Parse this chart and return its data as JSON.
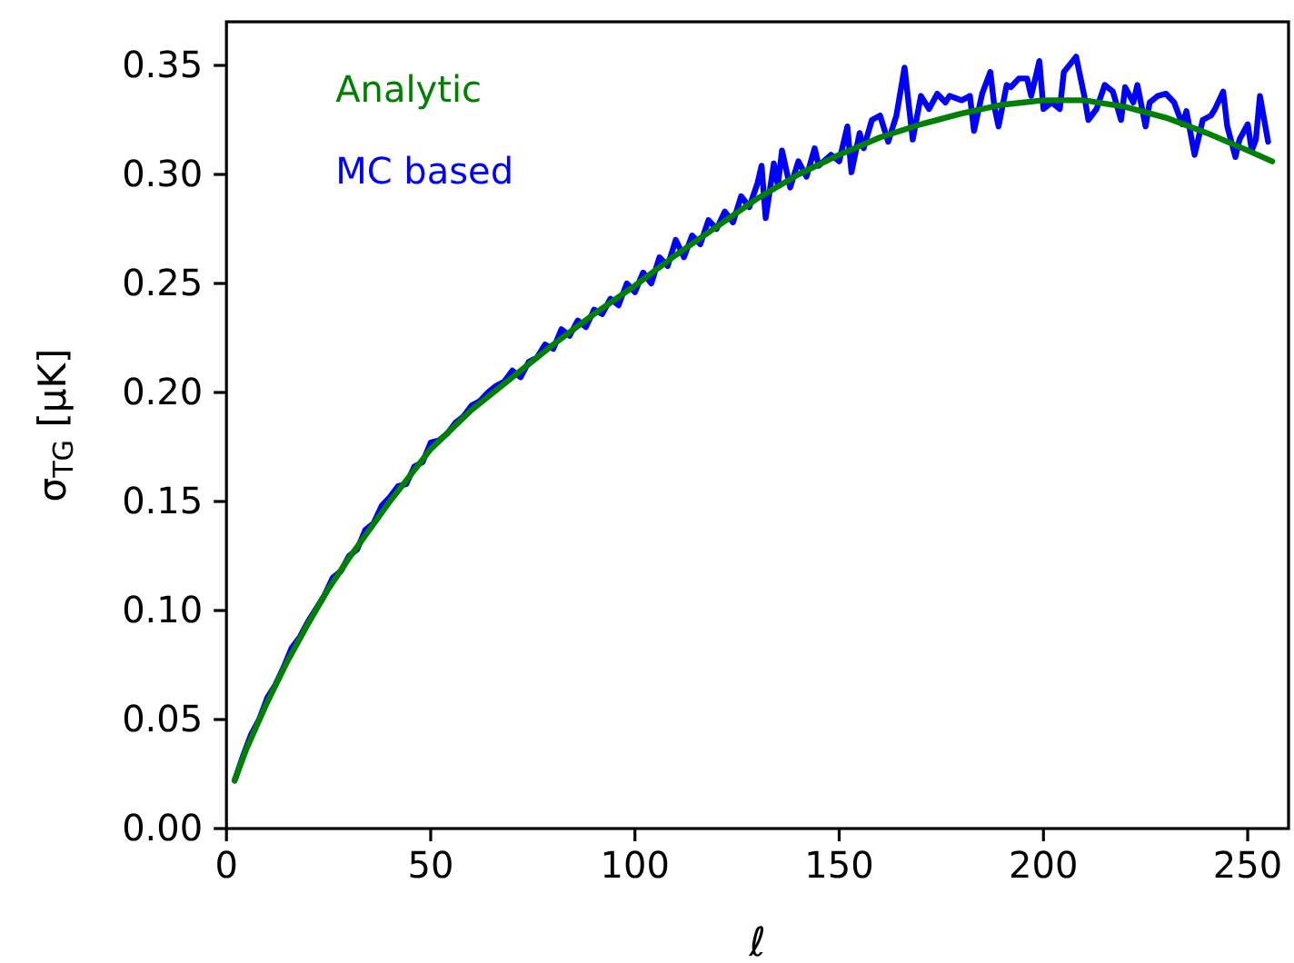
{
  "chart_data": {
    "type": "line",
    "xlabel": "ℓ",
    "ylabel": "σ$_{TG}$  [μK]",
    "xlim": [
      0,
      260
    ],
    "xticks": [
      0,
      50,
      100,
      150,
      200,
      250
    ],
    "ylim": [
      0,
      0.37
    ],
    "yticks": [
      {
        "value": 0,
        "label": "0.00"
      },
      {
        "value": 0.05,
        "label": "0.05"
      },
      {
        "value": 0.1,
        "label": "0.10"
      },
      {
        "value": 0.15,
        "label": "0.15"
      },
      {
        "value": 0.2,
        "label": "0.20"
      },
      {
        "value": 0.25,
        "label": "0.25"
      },
      {
        "value": 0.3,
        "label": "0.30"
      },
      {
        "value": 0.35,
        "label": "0.35"
      }
    ],
    "legend": "top left",
    "grid": false,
    "marker": "none",
    "line_style": "solid",
    "series": [
      {
        "name": "Analytic",
        "color": "#008000",
        "x": [
          2,
          5,
          10,
          15,
          20,
          25,
          30,
          40,
          50,
          60,
          70,
          80,
          90,
          100,
          110,
          120,
          130,
          140,
          150,
          160,
          170,
          180,
          190,
          200,
          210,
          220,
          230,
          240,
          250,
          256
        ],
        "values": [
          0.022,
          0.037,
          0.058,
          0.077,
          0.094,
          0.11,
          0.124,
          0.15,
          0.174,
          0.192,
          0.207,
          0.222,
          0.236,
          0.249,
          0.263,
          0.276,
          0.289,
          0.3,
          0.309,
          0.317,
          0.323,
          0.328,
          0.332,
          0.334,
          0.334,
          0.331,
          0.326,
          0.319,
          0.311,
          0.306
        ]
      },
      {
        "name": "MC based",
        "color": "#0000ff",
        "x": [
          2,
          4,
          6,
          8,
          10,
          12,
          14,
          16,
          18,
          20,
          22,
          24,
          26,
          28,
          30,
          32,
          34,
          36,
          38,
          40,
          42,
          44,
          46,
          48,
          50,
          52,
          54,
          56,
          58,
          60,
          62,
          64,
          66,
          68,
          70,
          72,
          74,
          76,
          78,
          80,
          82,
          84,
          86,
          88,
          90,
          92,
          94,
          96,
          98,
          100,
          102,
          104,
          106,
          108,
          110,
          112,
          114,
          116,
          118,
          120,
          122,
          124,
          126,
          128,
          130,
          131,
          132,
          134,
          135,
          136,
          138,
          140,
          142,
          144,
          145,
          148,
          150,
          152,
          153,
          155,
          156,
          158,
          160,
          162,
          164,
          166,
          168,
          170,
          172,
          174,
          176,
          177,
          180,
          182,
          183,
          185,
          187,
          188,
          189,
          191,
          192,
          194,
          196,
          197,
          199,
          200,
          202,
          204,
          205,
          208,
          210,
          211,
          213,
          215,
          217,
          219,
          220,
          222,
          223,
          225,
          226,
          228,
          230,
          232,
          234,
          235,
          237,
          239,
          241,
          242,
          244,
          245,
          247,
          248,
          250,
          251,
          252,
          253,
          255
        ],
        "values": [
          0.022,
          0.033,
          0.043,
          0.05,
          0.06,
          0.066,
          0.074,
          0.083,
          0.088,
          0.095,
          0.101,
          0.107,
          0.115,
          0.118,
          0.125,
          0.128,
          0.137,
          0.14,
          0.148,
          0.152,
          0.157,
          0.158,
          0.166,
          0.168,
          0.177,
          0.178,
          0.181,
          0.186,
          0.189,
          0.194,
          0.196,
          0.2,
          0.203,
          0.205,
          0.21,
          0.207,
          0.214,
          0.216,
          0.222,
          0.22,
          0.229,
          0.226,
          0.233,
          0.23,
          0.238,
          0.236,
          0.243,
          0.24,
          0.25,
          0.246,
          0.255,
          0.25,
          0.262,
          0.258,
          0.27,
          0.262,
          0.272,
          0.268,
          0.279,
          0.275,
          0.283,
          0.278,
          0.29,
          0.285,
          0.296,
          0.304,
          0.28,
          0.305,
          0.295,
          0.311,
          0.294,
          0.306,
          0.299,
          0.312,
          0.304,
          0.309,
          0.306,
          0.322,
          0.301,
          0.319,
          0.312,
          0.325,
          0.327,
          0.315,
          0.327,
          0.349,
          0.316,
          0.336,
          0.33,
          0.337,
          0.333,
          0.336,
          0.334,
          0.336,
          0.32,
          0.337,
          0.347,
          0.331,
          0.322,
          0.341,
          0.34,
          0.344,
          0.344,
          0.336,
          0.352,
          0.33,
          0.333,
          0.33,
          0.347,
          0.354,
          0.336,
          0.325,
          0.33,
          0.341,
          0.338,
          0.325,
          0.34,
          0.333,
          0.341,
          0.322,
          0.333,
          0.336,
          0.337,
          0.333,
          0.323,
          0.329,
          0.309,
          0.325,
          0.327,
          0.33,
          0.338,
          0.322,
          0.308,
          0.316,
          0.323,
          0.311,
          0.316,
          0.336,
          0.315
        ]
      }
    ]
  }
}
